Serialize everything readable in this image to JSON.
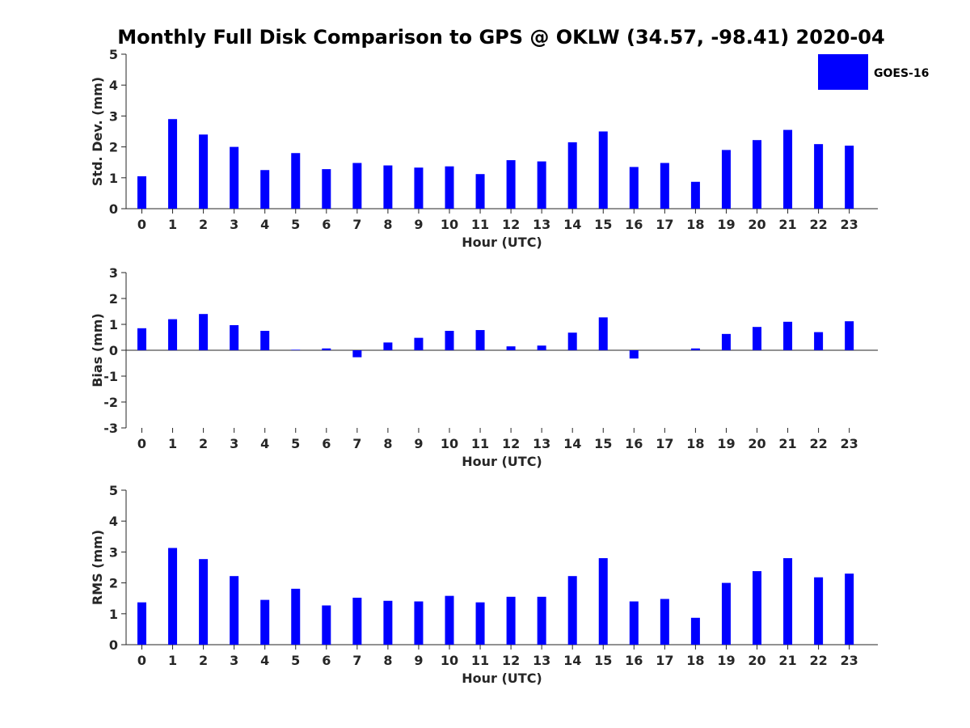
{
  "figure": {
    "title": "Monthly Full Disk Comparison to GPS @ OKLW (34.57, -98.41) 2020-04"
  },
  "legend": {
    "label": "GOES-16",
    "color": "#0000ff",
    "placement": "top-right"
  },
  "chart_data": [
    {
      "type": "bar",
      "id": "std",
      "title": "",
      "xlabel": "Hour (UTC)",
      "ylabel": "Std. Dev. (mm)",
      "ylim": [
        0,
        5
      ],
      "yticks": [
        0,
        1,
        2,
        3,
        4,
        5
      ],
      "categories": [
        "0",
        "1",
        "2",
        "3",
        "4",
        "5",
        "6",
        "7",
        "8",
        "9",
        "10",
        "11",
        "12",
        "13",
        "14",
        "15",
        "16",
        "17",
        "18",
        "19",
        "20",
        "21",
        "22",
        "23"
      ],
      "series": [
        {
          "name": "GOES-16",
          "color": "#0000ff",
          "values": [
            1.05,
            2.9,
            2.4,
            2.0,
            1.25,
            1.8,
            1.28,
            1.48,
            1.4,
            1.33,
            1.37,
            1.12,
            1.57,
            1.53,
            2.15,
            2.5,
            1.35,
            1.48,
            0.87,
            1.9,
            2.22,
            2.55,
            2.09,
            2.04
          ]
        }
      ]
    },
    {
      "type": "bar",
      "id": "bias",
      "title": "",
      "xlabel": "Hour (UTC)",
      "ylabel": "Bias (mm)",
      "ylim": [
        -3,
        3
      ],
      "yticks": [
        -3,
        -2,
        -1,
        0,
        1,
        2,
        3
      ],
      "categories": [
        "0",
        "1",
        "2",
        "3",
        "4",
        "5",
        "6",
        "7",
        "8",
        "9",
        "10",
        "11",
        "12",
        "13",
        "14",
        "15",
        "16",
        "17",
        "18",
        "19",
        "20",
        "21",
        "22",
        "23"
      ],
      "series": [
        {
          "name": "GOES-16",
          "color": "#0000ff",
          "values": [
            0.85,
            1.2,
            1.4,
            0.97,
            0.75,
            0.02,
            0.07,
            -0.27,
            0.3,
            0.48,
            0.75,
            0.78,
            0.15,
            0.18,
            0.68,
            1.27,
            -0.32,
            0.0,
            0.07,
            0.63,
            0.9,
            1.1,
            0.7,
            1.12
          ]
        }
      ]
    },
    {
      "type": "bar",
      "id": "rms",
      "title": "",
      "xlabel": "Hour (UTC)",
      "ylabel": "RMS (mm)",
      "ylim": [
        0,
        5
      ],
      "yticks": [
        0,
        1,
        2,
        3,
        4,
        5
      ],
      "categories": [
        "0",
        "1",
        "2",
        "3",
        "4",
        "5",
        "6",
        "7",
        "8",
        "9",
        "10",
        "11",
        "12",
        "13",
        "14",
        "15",
        "16",
        "17",
        "18",
        "19",
        "20",
        "21",
        "22",
        "23"
      ],
      "series": [
        {
          "name": "GOES-16",
          "color": "#0000ff",
          "values": [
            1.37,
            3.13,
            2.77,
            2.22,
            1.45,
            1.81,
            1.27,
            1.52,
            1.42,
            1.4,
            1.58,
            1.37,
            1.55,
            1.55,
            2.22,
            2.8,
            1.4,
            1.48,
            0.87,
            2.0,
            2.38,
            2.8,
            2.18,
            2.3
          ]
        }
      ]
    }
  ]
}
